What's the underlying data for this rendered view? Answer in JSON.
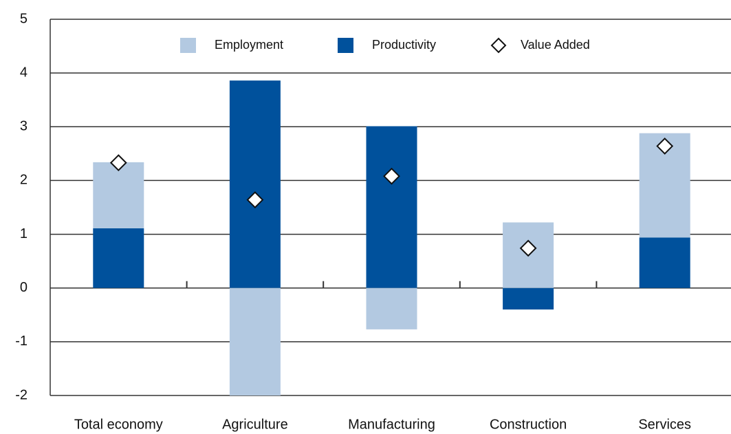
{
  "chart_data": {
    "type": "bar",
    "categories": [
      "Total economy",
      "Agriculture",
      "Manufacturing",
      "Construction",
      "Services"
    ],
    "series": [
      {
        "name": "Employment",
        "color": "#b3c9e1",
        "values": [
          1.23,
          -2.0,
          -0.77,
          1.22,
          1.94
        ]
      },
      {
        "name": "Productivity",
        "color": "#00519c",
        "values": [
          1.11,
          3.86,
          3.01,
          -0.4,
          0.94
        ]
      },
      {
        "name": "Value Added",
        "type": "scatter",
        "color": "#ffffff",
        "values": [
          2.33,
          1.64,
          2.08,
          0.74,
          2.64
        ]
      }
    ],
    "stacked": true,
    "ylim": [
      -2,
      5
    ],
    "yticks": [
      -2,
      -1,
      0,
      1,
      2,
      3,
      4,
      5
    ],
    "grid": true,
    "legend": "top"
  }
}
